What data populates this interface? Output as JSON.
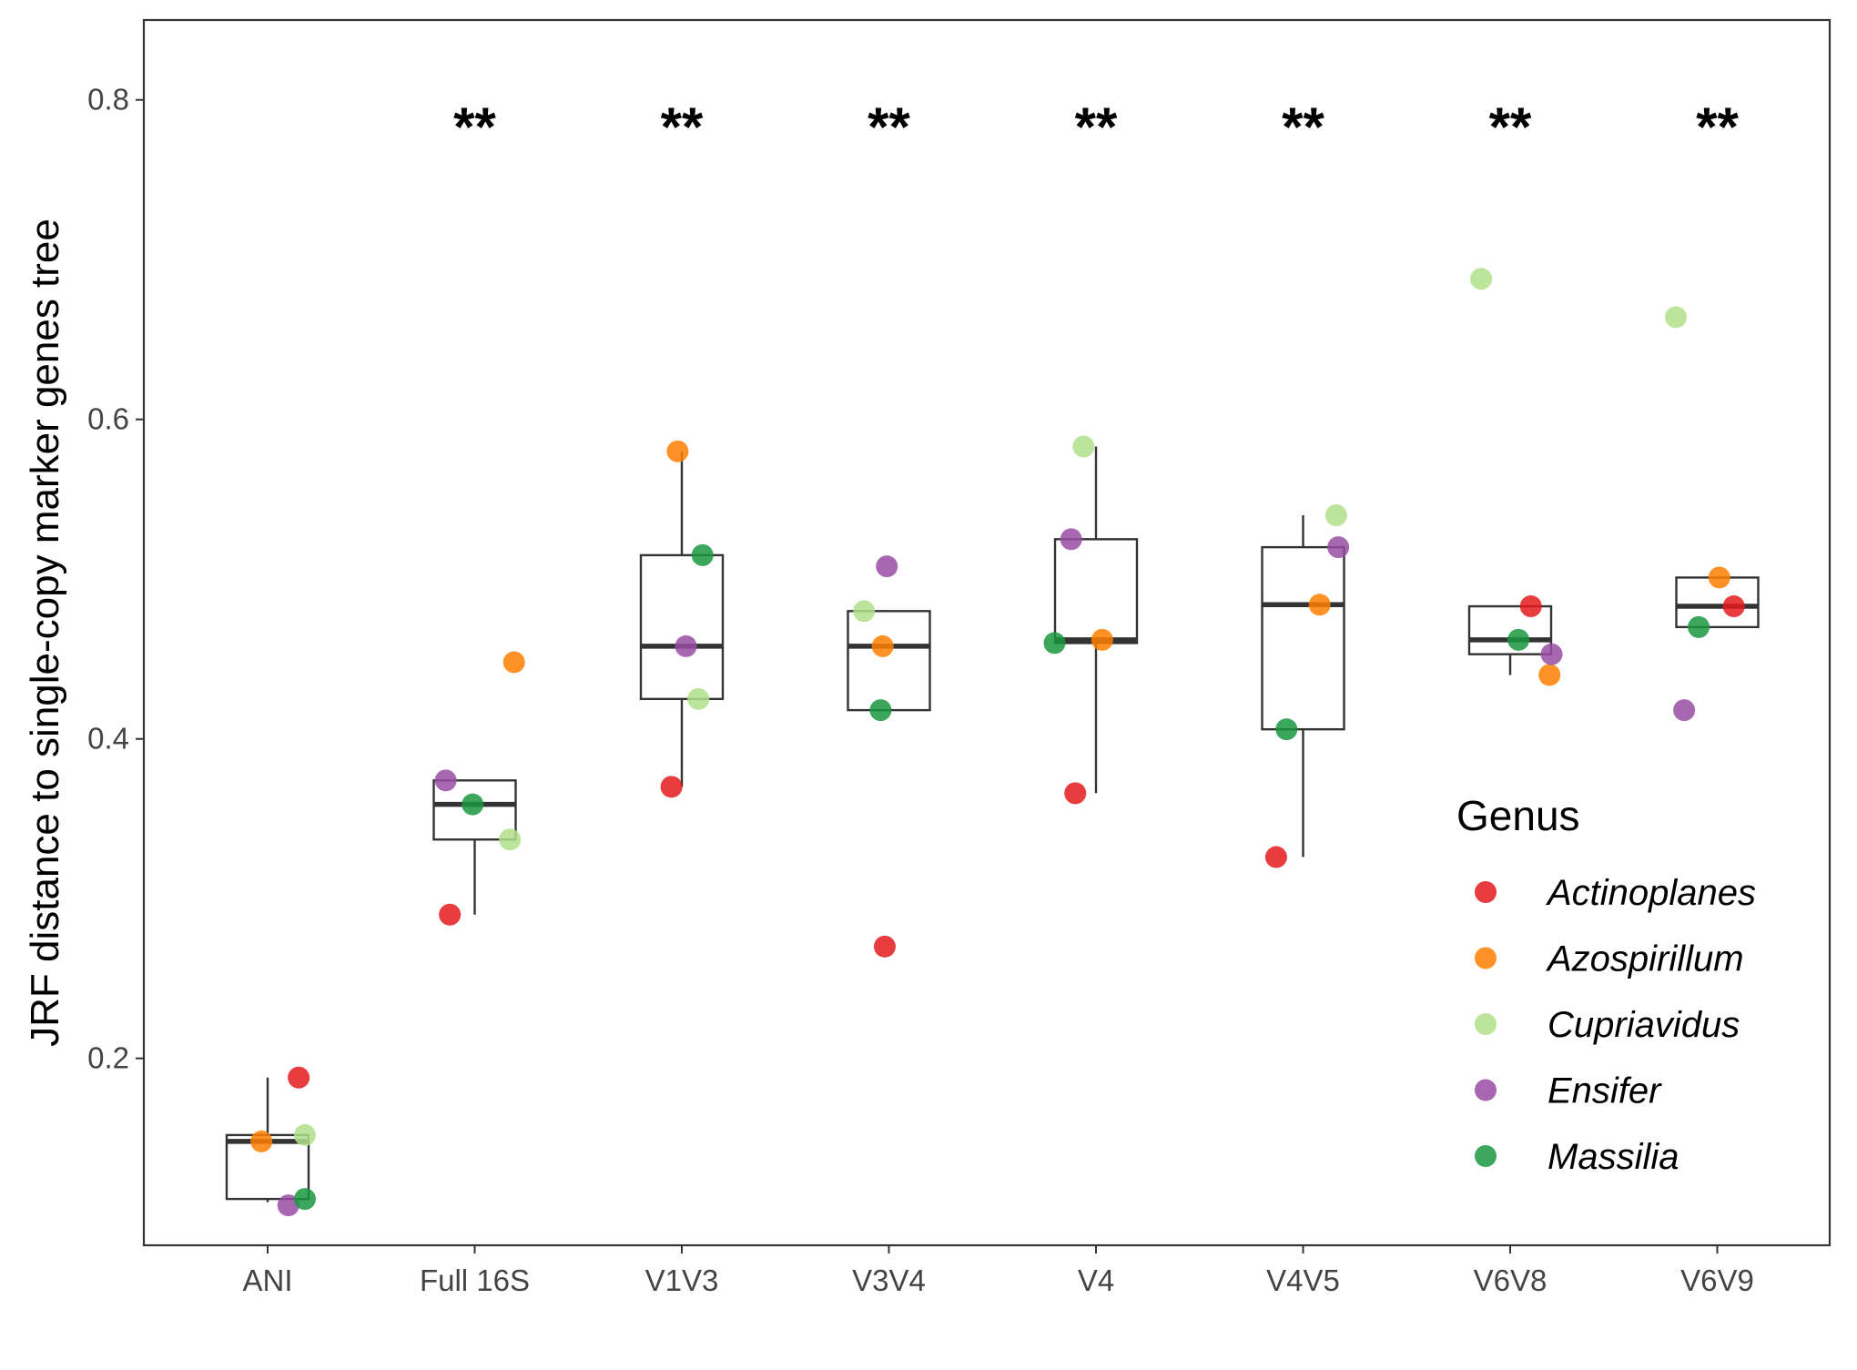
{
  "chart_data": {
    "type": "box",
    "title": "",
    "xlabel": "",
    "ylabel": "JRF distance to single-copy marker genes tree",
    "ylim": [
      0.083,
      0.85
    ],
    "yticks": [
      0.2,
      0.4,
      0.6,
      0.8
    ],
    "ytick_labels": [
      "0.2",
      "0.4",
      "0.6",
      "0.8"
    ],
    "grid": false,
    "categories": [
      "ANI",
      "Full 16S",
      "V1V3",
      "V3V4",
      "V4",
      "V4V5",
      "V6V8",
      "V6V9"
    ],
    "significance": [
      "",
      "**",
      "**",
      "**",
      "**",
      "**",
      "**",
      "**"
    ],
    "boxes": [
      {
        "category": "ANI",
        "whisker_low": 0.11,
        "q1": 0.112,
        "median": 0.148,
        "q3": 0.152,
        "whisker_high": 0.188
      },
      {
        "category": "Full 16S",
        "whisker_low": 0.29,
        "q1": 0.337,
        "median": 0.359,
        "q3": 0.374,
        "whisker_high": 0.374
      },
      {
        "category": "V1V3",
        "whisker_low": 0.37,
        "q1": 0.425,
        "median": 0.458,
        "q3": 0.515,
        "whisker_high": 0.58
      },
      {
        "category": "V3V4",
        "whisker_low": 0.418,
        "q1": 0.418,
        "median": 0.458,
        "q3": 0.48,
        "whisker_high": 0.48
      },
      {
        "category": "V4",
        "whisker_low": 0.366,
        "q1": 0.46,
        "median": 0.462,
        "q3": 0.525,
        "whisker_high": 0.583
      },
      {
        "category": "V4V5",
        "whisker_low": 0.326,
        "q1": 0.406,
        "median": 0.484,
        "q3": 0.52,
        "whisker_high": 0.54
      },
      {
        "category": "V6V8",
        "whisker_low": 0.44,
        "q1": 0.453,
        "median": 0.462,
        "q3": 0.483,
        "whisker_high": 0.483
      },
      {
        "category": "V6V9",
        "whisker_low": 0.47,
        "q1": 0.47,
        "median": 0.483,
        "q3": 0.501,
        "whisker_high": 0.501
      }
    ],
    "legend": {
      "title": "Genus",
      "position": "right",
      "entries": [
        {
          "name": "Actinoplanes",
          "color": "#E41A1C"
        },
        {
          "name": "Azospirillum",
          "color": "#FF7F00"
        },
        {
          "name": "Cupriavidus",
          "color": "#B2DF8A"
        },
        {
          "name": "Ensifer",
          "color": "#984EA3"
        },
        {
          "name": "Massilia",
          "color": "#1A9641"
        }
      ]
    },
    "series": [
      {
        "name": "Actinoplanes",
        "color": "#E41A1C",
        "points": [
          {
            "category": "ANI",
            "y": 0.188,
            "jitter": 0.15
          },
          {
            "category": "Full 16S",
            "y": 0.29,
            "jitter": -0.12
          },
          {
            "category": "V1V3",
            "y": 0.37,
            "jitter": -0.05
          },
          {
            "category": "V3V4",
            "y": 0.27,
            "jitter": -0.02
          },
          {
            "category": "V4",
            "y": 0.366,
            "jitter": -0.1
          },
          {
            "category": "V4V5",
            "y": 0.326,
            "jitter": -0.13
          },
          {
            "category": "V6V8",
            "y": 0.483,
            "jitter": 0.1
          },
          {
            "category": "V6V9",
            "y": 0.483,
            "jitter": 0.08
          }
        ]
      },
      {
        "name": "Azospirillum",
        "color": "#FF7F00",
        "points": [
          {
            "category": "ANI",
            "y": 0.148,
            "jitter": -0.03
          },
          {
            "category": "Full 16S",
            "y": 0.448,
            "jitter": 0.19
          },
          {
            "category": "V1V3",
            "y": 0.58,
            "jitter": -0.02
          },
          {
            "category": "V3V4",
            "y": 0.458,
            "jitter": -0.03
          },
          {
            "category": "V4",
            "y": 0.462,
            "jitter": 0.03
          },
          {
            "category": "V4V5",
            "y": 0.484,
            "jitter": 0.08
          },
          {
            "category": "V6V8",
            "y": 0.44,
            "jitter": 0.19
          },
          {
            "category": "V6V9",
            "y": 0.501,
            "jitter": 0.01
          }
        ]
      },
      {
        "name": "Cupriavidus",
        "color": "#B2DF8A",
        "points": [
          {
            "category": "ANI",
            "y": 0.152,
            "jitter": 0.18
          },
          {
            "category": "Full 16S",
            "y": 0.337,
            "jitter": 0.17
          },
          {
            "category": "V1V3",
            "y": 0.425,
            "jitter": 0.08
          },
          {
            "category": "V3V4",
            "y": 0.48,
            "jitter": -0.12
          },
          {
            "category": "V4",
            "y": 0.583,
            "jitter": -0.06
          },
          {
            "category": "V4V5",
            "y": 0.54,
            "jitter": 0.16
          },
          {
            "category": "V6V8",
            "y": 0.688,
            "jitter": -0.14
          },
          {
            "category": "V6V9",
            "y": 0.664,
            "jitter": -0.2
          }
        ]
      },
      {
        "name": "Ensifer",
        "color": "#984EA3",
        "points": [
          {
            "category": "ANI",
            "y": 0.108,
            "jitter": 0.1
          },
          {
            "category": "Full 16S",
            "y": 0.374,
            "jitter": -0.14
          },
          {
            "category": "V1V3",
            "y": 0.458,
            "jitter": 0.02
          },
          {
            "category": "V3V4",
            "y": 0.508,
            "jitter": -0.01
          },
          {
            "category": "V4",
            "y": 0.525,
            "jitter": -0.12
          },
          {
            "category": "V4V5",
            "y": 0.52,
            "jitter": 0.17
          },
          {
            "category": "V6V8",
            "y": 0.453,
            "jitter": 0.2
          },
          {
            "category": "V6V9",
            "y": 0.418,
            "jitter": -0.16
          }
        ]
      },
      {
        "name": "Massilia",
        "color": "#1A9641",
        "points": [
          {
            "category": "ANI",
            "y": 0.112,
            "jitter": 0.18
          },
          {
            "category": "Full 16S",
            "y": 0.359,
            "jitter": -0.01
          },
          {
            "category": "V1V3",
            "y": 0.515,
            "jitter": 0.1
          },
          {
            "category": "V3V4",
            "y": 0.418,
            "jitter": -0.04
          },
          {
            "category": "V4",
            "y": 0.46,
            "jitter": -0.2
          },
          {
            "category": "V4V5",
            "y": 0.406,
            "jitter": -0.08
          },
          {
            "category": "V6V8",
            "y": 0.462,
            "jitter": 0.04
          },
          {
            "category": "V6V9",
            "y": 0.47,
            "jitter": -0.09
          }
        ]
      }
    ]
  }
}
